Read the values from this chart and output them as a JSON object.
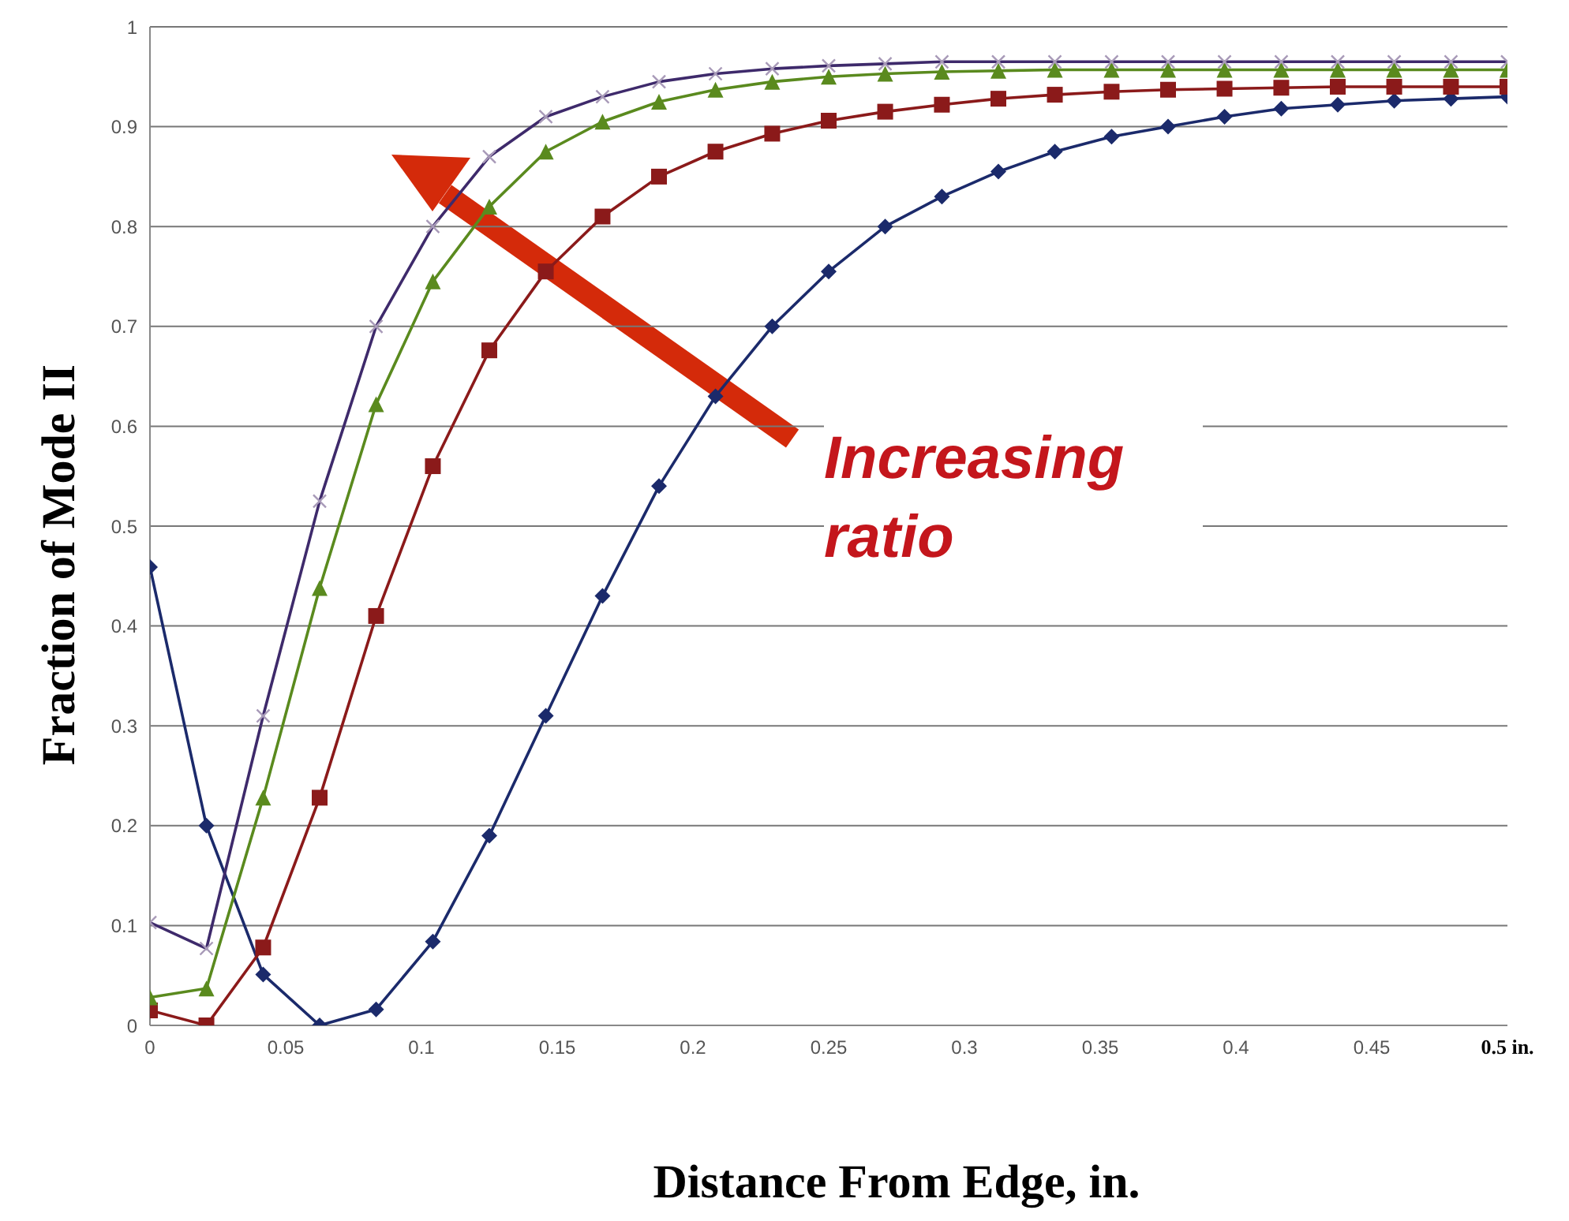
{
  "chart_data": {
    "type": "line",
    "xlabel": "Distance From Edge, in.",
    "ylabel": "Fraction of Mode II",
    "x": [
      0,
      0.0208,
      0.0417,
      0.0625,
      0.0833,
      0.1042,
      0.125,
      0.1458,
      0.1667,
      0.1875,
      0.2083,
      0.2292,
      0.25,
      0.2708,
      0.2917,
      0.3125,
      0.3333,
      0.3542,
      0.375,
      0.3958,
      0.4167,
      0.4375,
      0.4583,
      0.4792,
      0.5
    ],
    "series": [
      {
        "color": "#1b2a6b",
        "marker": "diamond",
        "values": [
          0.459,
          0.2,
          0.051,
          0,
          0.016,
          0.084,
          0.19,
          0.31,
          0.43,
          0.54,
          0.63,
          0.7,
          0.755,
          0.8,
          0.83,
          0.855,
          0.875,
          0.89,
          0.9,
          0.91,
          0.918,
          0.922,
          0.926,
          0.928,
          0.93
        ]
      },
      {
        "color": "#8b1a1a",
        "marker": "square",
        "values": [
          0.015,
          0,
          0.078,
          0.228,
          0.41,
          0.56,
          0.676,
          0.755,
          0.81,
          0.85,
          0.875,
          0.893,
          0.906,
          0.915,
          0.922,
          0.928,
          0.932,
          0.935,
          0.937,
          0.938,
          0.939,
          0.94,
          0.94,
          0.94,
          0.94
        ]
      },
      {
        "color": "#5a8a1e",
        "marker": "triangle",
        "values": [
          0.028,
          0.037,
          0.228,
          0.438,
          0.622,
          0.745,
          0.82,
          0.875,
          0.905,
          0.925,
          0.937,
          0.945,
          0.95,
          0.953,
          0.955,
          0.956,
          0.957,
          0.957,
          0.957,
          0.957,
          0.957,
          0.957,
          0.957,
          0.957,
          0.957
        ]
      },
      {
        "color": "#3e2a6b",
        "marker": "cross",
        "values": [
          0.103,
          0.077,
          0.31,
          0.525,
          0.7,
          0.8,
          0.87,
          0.91,
          0.93,
          0.945,
          0.953,
          0.958,
          0.961,
          0.963,
          0.965,
          0.965,
          0.965,
          0.965,
          0.965,
          0.965,
          0.965,
          0.965,
          0.965,
          0.965,
          0.965
        ]
      }
    ],
    "xlim": [
      0,
      0.5
    ],
    "xticks": [
      0,
      0.05,
      0.1,
      0.15,
      0.2,
      0.25,
      0.3,
      0.35,
      0.4,
      0.45,
      {
        "value": 0.5,
        "label": "0.5 in."
      }
    ],
    "ylim": [
      0,
      1
    ],
    "yticks": [
      0,
      0.1,
      0.2,
      0.3,
      0.4,
      0.5,
      0.6,
      0.7,
      0.8,
      0.9,
      1
    ],
    "grid": "y",
    "line_style": "solid",
    "annotations": [
      "Increasing ratio"
    ]
  }
}
